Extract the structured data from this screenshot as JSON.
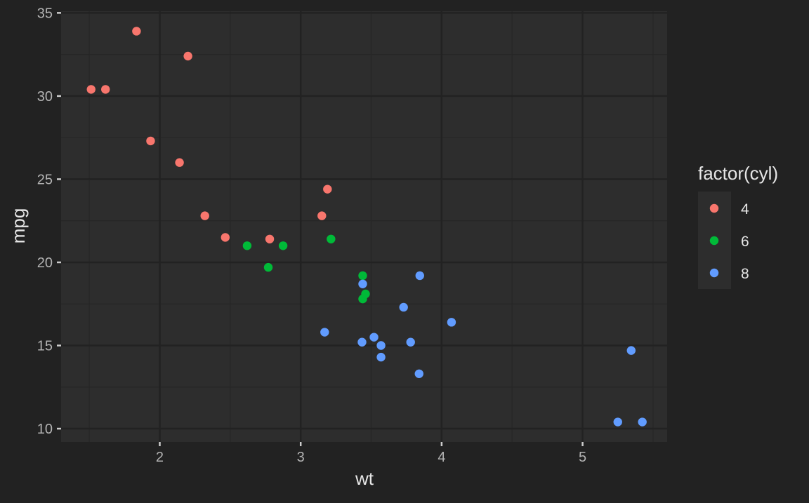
{
  "chart_data": {
    "type": "scatter",
    "title": "",
    "xlabel": "wt",
    "ylabel": "mpg",
    "xlim": [
      1.3,
      5.6
    ],
    "ylim": [
      9.2,
      35.1
    ],
    "x_ticks": [
      2,
      3,
      4,
      5
    ],
    "y_ticks": [
      10,
      15,
      20,
      25,
      30,
      35
    ],
    "grid": true,
    "legend": {
      "title": "factor(cyl)",
      "placement": "right"
    },
    "series": [
      {
        "name": "4",
        "color": "#f8766d",
        "points": [
          [
            1.513,
            30.4
          ],
          [
            1.615,
            30.4
          ],
          [
            1.835,
            33.9
          ],
          [
            1.935,
            27.3
          ],
          [
            2.14,
            26.0
          ],
          [
            2.2,
            32.4
          ],
          [
            2.32,
            22.8
          ],
          [
            2.465,
            21.5
          ],
          [
            2.78,
            21.4
          ],
          [
            3.15,
            22.8
          ],
          [
            3.19,
            24.4
          ]
        ]
      },
      {
        "name": "6",
        "color": "#00ba38",
        "points": [
          [
            2.62,
            21.0
          ],
          [
            2.77,
            19.7
          ],
          [
            2.875,
            21.0
          ],
          [
            3.215,
            21.4
          ],
          [
            3.44,
            19.2
          ],
          [
            3.44,
            17.8
          ],
          [
            3.46,
            18.1
          ]
        ]
      },
      {
        "name": "8",
        "color": "#619cff",
        "points": [
          [
            3.17,
            15.8
          ],
          [
            3.435,
            15.2
          ],
          [
            3.44,
            18.7
          ],
          [
            3.52,
            15.5
          ],
          [
            3.57,
            15.0
          ],
          [
            3.57,
            14.3
          ],
          [
            3.73,
            17.3
          ],
          [
            3.78,
            15.2
          ],
          [
            3.84,
            13.3
          ],
          [
            3.845,
            19.2
          ],
          [
            4.07,
            16.4
          ],
          [
            5.25,
            10.4
          ],
          [
            5.345,
            14.7
          ],
          [
            5.424,
            10.4
          ]
        ]
      }
    ]
  }
}
